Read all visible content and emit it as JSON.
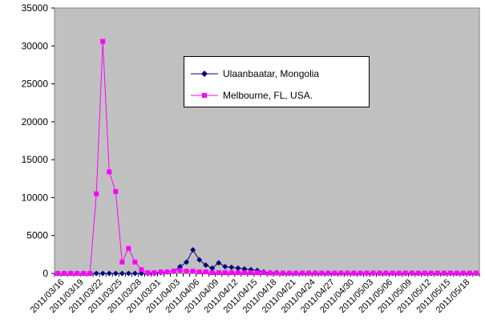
{
  "chart_data": {
    "type": "line",
    "title": "",
    "xlabel": "",
    "ylabel": "",
    "ylim": [
      0,
      35000
    ],
    "yticks": [
      0,
      5000,
      10000,
      15000,
      20000,
      25000,
      30000,
      35000
    ],
    "ytick_labels": [
      "0",
      "5000",
      "10000",
      "15000",
      "20000",
      "25000",
      "30000",
      "35000"
    ],
    "xtick_labels": [
      "2011/03/16",
      "2011/03/19",
      "2011/03/22",
      "2011/03/25",
      "2011/03/28",
      "2011/03/31",
      "2011/04/03",
      "2011/04/06",
      "2011/04/09",
      "2011/04/12",
      "2011/04/15",
      "2011/04/18",
      "2011/04/21",
      "2011/04/24",
      "2011/04/27",
      "2011/04/30",
      "2011/05/03",
      "2011/05/06",
      "2011/05/09",
      "2011/05/12",
      "2011/05/15",
      "2011/05/18"
    ],
    "x": [
      "2011/03/16",
      "2011/03/17",
      "2011/03/18",
      "2011/03/19",
      "2011/03/20",
      "2011/03/21",
      "2011/03/22",
      "2011/03/23",
      "2011/03/24",
      "2011/03/25",
      "2011/03/26",
      "2011/03/27",
      "2011/03/28",
      "2011/03/29",
      "2011/03/30",
      "2011/03/31",
      "2011/04/01",
      "2011/04/02",
      "2011/04/03",
      "2011/04/04",
      "2011/04/05",
      "2011/04/06",
      "2011/04/07",
      "2011/04/08",
      "2011/04/09",
      "2011/04/10",
      "2011/04/11",
      "2011/04/12",
      "2011/04/13",
      "2011/04/14",
      "2011/04/15",
      "2011/04/16",
      "2011/04/17",
      "2011/04/18",
      "2011/04/19",
      "2011/04/20",
      "2011/04/21",
      "2011/04/22",
      "2011/04/23",
      "2011/04/24",
      "2011/04/25",
      "2011/04/26",
      "2011/04/27",
      "2011/04/28",
      "2011/04/29",
      "2011/04/30",
      "2011/05/01",
      "2011/05/02",
      "2011/05/03",
      "2011/05/04",
      "2011/05/05",
      "2011/05/06",
      "2011/05/07",
      "2011/05/08",
      "2011/05/09",
      "2011/05/10",
      "2011/05/11",
      "2011/05/12",
      "2011/05/13",
      "2011/05/14",
      "2011/05/15",
      "2011/05/16",
      "2011/05/17",
      "2011/05/18",
      "2011/05/19",
      "2011/05/20"
    ],
    "series": [
      {
        "name": "Ulaanbaatar, Mongolia",
        "color": "#000080",
        "marker": "diamond",
        "values": [
          0,
          0,
          0,
          0,
          0,
          0,
          0,
          0,
          0,
          0,
          0,
          0,
          0,
          0,
          0,
          0,
          100,
          200,
          300,
          900,
          1500,
          3100,
          1800,
          1100,
          700,
          1400,
          900,
          800,
          700,
          600,
          500,
          400,
          200,
          100,
          100,
          0,
          0,
          0,
          0,
          0,
          0,
          0,
          0,
          0,
          0,
          0,
          0,
          0,
          0,
          0,
          0,
          0,
          0,
          0,
          0,
          0,
          0,
          0,
          0,
          0,
          0,
          0,
          0,
          0,
          0,
          0
        ]
      },
      {
        "name": "Melbourne, FL, USA.",
        "color": "#FF00FF",
        "marker": "square",
        "values": [
          0,
          0,
          0,
          0,
          0,
          0,
          10500,
          30600,
          13400,
          10800,
          1500,
          3300,
          1500,
          500,
          100,
          100,
          200,
          200,
          300,
          400,
          300,
          300,
          200,
          200,
          100,
          100,
          100,
          100,
          100,
          100,
          100,
          100,
          100,
          50,
          50,
          50,
          50,
          50,
          50,
          50,
          50,
          50,
          50,
          50,
          50,
          50,
          50,
          50,
          50,
          50,
          50,
          50,
          50,
          50,
          50,
          50,
          50,
          50,
          50,
          50,
          50,
          50,
          50,
          50,
          50,
          50
        ]
      }
    ],
    "grid": false,
    "plot_background": "#C0C0C0",
    "legend_position": "inside-upper-right"
  }
}
